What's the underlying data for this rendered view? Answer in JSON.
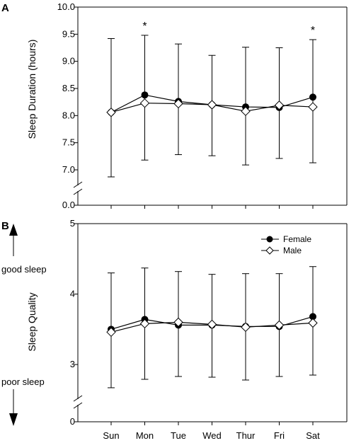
{
  "chart_data": [
    {
      "type": "line",
      "panel_label": "A",
      "ylabel": "Sleep Duration (hours)",
      "categories": [
        "Sun",
        "Mon",
        "Tue",
        "Wed",
        "Thur",
        "Fri",
        "Sat"
      ],
      "y_axis": "broken",
      "ylim_upper": [
        7.0,
        10.0
      ],
      "yticks_upper": [
        "7.0",
        "7.5",
        "8.0",
        "8.5",
        "9.0",
        "9.5",
        "10.0"
      ],
      "ytick_lower": "0.0",
      "series": [
        {
          "name": "Female",
          "marker": "filled-circle",
          "values": [
            8.06,
            8.38,
            8.26,
            8.2,
            8.16,
            8.15,
            8.34
          ],
          "error_low": [
            6.87,
            7.18,
            7.28,
            7.26,
            7.09,
            7.21,
            7.13
          ],
          "error_high": [
            9.42,
            9.48,
            9.32,
            9.11,
            9.26,
            9.25,
            9.4
          ]
        },
        {
          "name": "Male",
          "marker": "open-diamond",
          "values": [
            8.06,
            8.23,
            8.22,
            8.2,
            8.08,
            8.19,
            8.16
          ],
          "error_low": [
            6.87,
            7.18,
            7.28,
            7.26,
            7.09,
            7.21,
            7.13
          ],
          "error_high": [
            9.42,
            9.48,
            9.32,
            9.11,
            9.26,
            9.25,
            9.4
          ]
        }
      ],
      "annotations": [
        {
          "category": "Mon",
          "text": "*"
        },
        {
          "category": "Sat",
          "text": "*"
        }
      ]
    },
    {
      "type": "line",
      "panel_label": "B",
      "ylabel": "Sleep Quality",
      "categories": [
        "Sun",
        "Mon",
        "Tue",
        "Wed",
        "Thur",
        "Fri",
        "Sat"
      ],
      "y_axis": "broken",
      "ylim_upper": [
        2.8,
        5.0
      ],
      "yticks_upper": [
        "3",
        "4",
        "5"
      ],
      "ytick_lower": "0",
      "side_labels": {
        "top": "good sleep",
        "bottom": "poor sleep"
      },
      "legend": {
        "placement": "top-right",
        "entries": [
          "Female",
          "Male"
        ]
      },
      "series": [
        {
          "name": "Female",
          "marker": "filled-circle",
          "values": [
            3.5,
            3.64,
            3.56,
            3.56,
            3.54,
            3.54,
            3.68
          ],
          "error_low": [
            2.67,
            2.79,
            2.83,
            2.82,
            2.78,
            2.83,
            2.85
          ],
          "error_high": [
            4.3,
            4.37,
            4.32,
            4.28,
            4.29,
            4.29,
            4.39
          ]
        },
        {
          "name": "Male",
          "marker": "open-diamond",
          "values": [
            3.46,
            3.58,
            3.6,
            3.57,
            3.53,
            3.56,
            3.59
          ],
          "error_low": [
            2.67,
            2.79,
            2.83,
            2.82,
            2.78,
            2.83,
            2.85
          ],
          "error_high": [
            4.3,
            4.37,
            4.32,
            4.28,
            4.29,
            4.29,
            4.39
          ]
        }
      ]
    }
  ]
}
